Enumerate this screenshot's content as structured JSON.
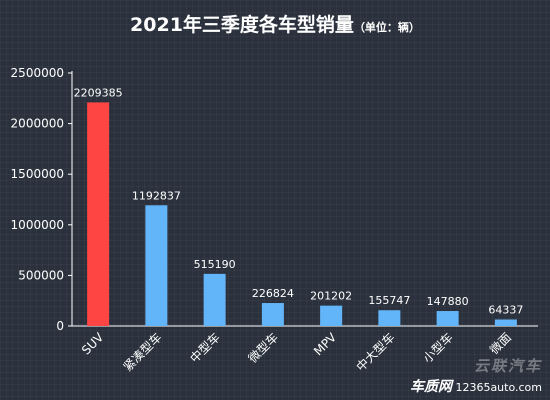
{
  "title": {
    "main": "2021年三季度各车型销量",
    "unit": "（单位：辆）"
  },
  "watermark": {
    "brand_cn": "云联汽车",
    "site_brand": "车质网",
    "site_url": "12365auto.com"
  },
  "colors": {
    "highlight": "#ff4444",
    "bar": "#63b5f9",
    "background": "#2a313c",
    "text": "#ffffff"
  },
  "chart_data": {
    "type": "bar",
    "title": "2021年三季度各车型销量",
    "xlabel": "",
    "ylabel": "",
    "ylim": [
      0,
      2500000
    ],
    "yticks": [
      "0",
      "500000",
      "1000000",
      "1500000",
      "2000000",
      "2500000"
    ],
    "categories": [
      "SUV",
      "紧凑型车",
      "中型车",
      "微型车",
      "MPV",
      "中大型车",
      "小型车",
      "微面"
    ],
    "values": [
      2209385,
      1192837,
      515190,
      226824,
      201202,
      155747,
      147880,
      64337
    ],
    "data_labels": [
      "2209385",
      "1192837",
      "515190",
      "226824",
      "201202",
      "155747",
      "147880",
      "64337"
    ],
    "highlight_index": 0,
    "grid": false,
    "legend": "none"
  }
}
